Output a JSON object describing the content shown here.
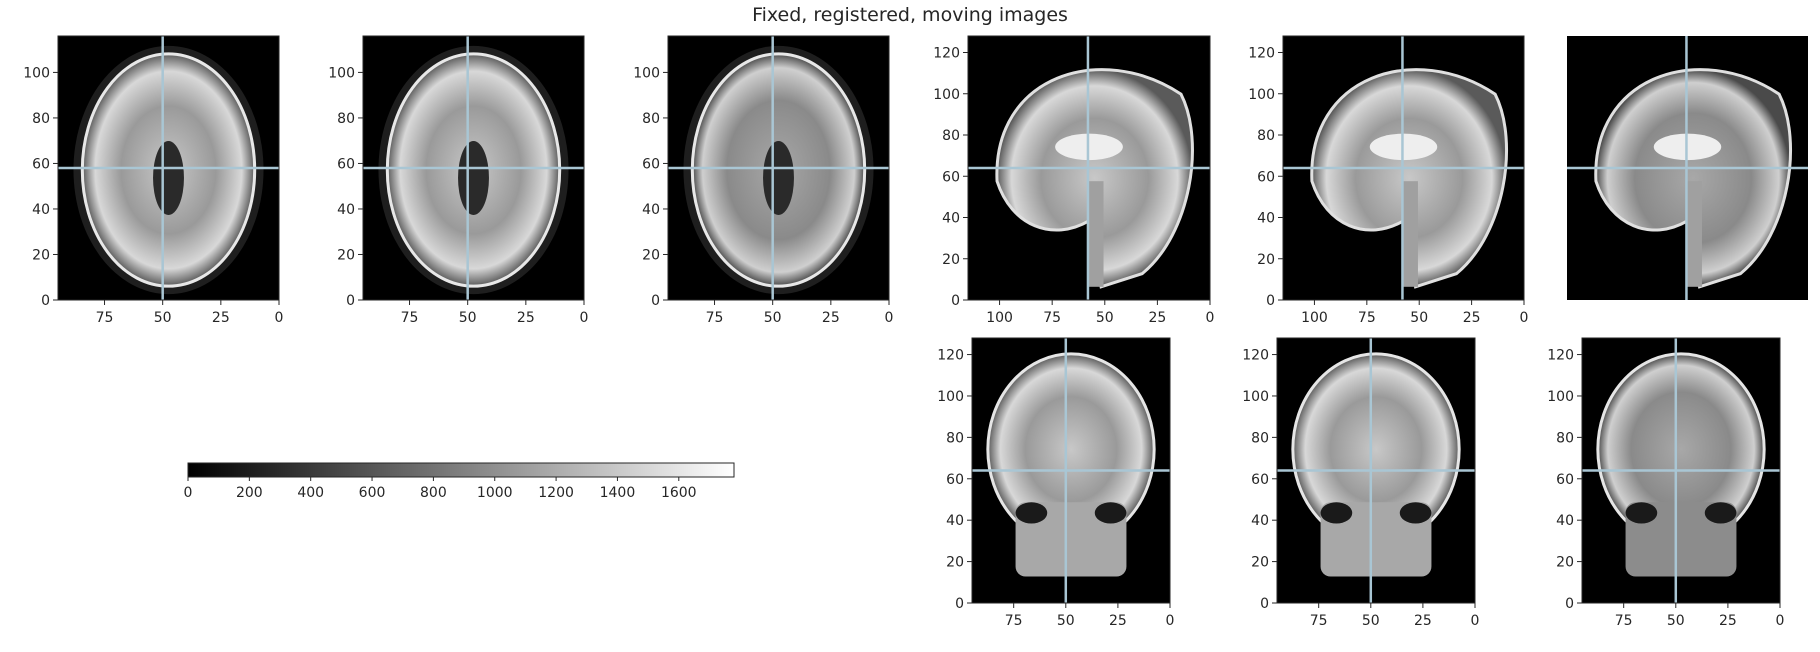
{
  "title": "Fixed, registered, moving images",
  "colors": {
    "crosshair": "#a9c6d4",
    "axis": "#262626",
    "background": "#000000",
    "tissue_dark": "#3a3a3a",
    "tissue_light": "#d8d8d8"
  },
  "chart_data": [
    {
      "type": "heatmap",
      "name": "axial-fixed",
      "view": "axial",
      "xlim": [
        95,
        0
      ],
      "ylim": [
        0,
        116
      ],
      "xticks": [
        75,
        50,
        25,
        0
      ],
      "yticks": [
        0,
        20,
        40,
        60,
        80,
        100
      ],
      "crosshair": {
        "x": 50,
        "y": 58
      },
      "colormap": "gray"
    },
    {
      "type": "heatmap",
      "name": "axial-registered",
      "view": "axial",
      "xlim": [
        95,
        0
      ],
      "ylim": [
        0,
        116
      ],
      "xticks": [
        75,
        50,
        25,
        0
      ],
      "yticks": [
        0,
        20,
        40,
        60,
        80,
        100
      ],
      "crosshair": {
        "x": 50,
        "y": 58
      },
      "colormap": "gray"
    },
    {
      "type": "heatmap",
      "name": "axial-moving",
      "view": "axial",
      "xlim": [
        95,
        0
      ],
      "ylim": [
        0,
        116
      ],
      "xticks": [
        75,
        50,
        25,
        0
      ],
      "yticks": [
        0,
        20,
        40,
        60,
        80,
        100
      ],
      "crosshair": {
        "x": 50,
        "y": 58
      },
      "colormap": "gray"
    },
    {
      "type": "heatmap",
      "name": "sagittal-fixed",
      "view": "sagittal",
      "xlim": [
        115,
        0
      ],
      "ylim": [
        0,
        128
      ],
      "xticks": [
        100,
        75,
        50,
        25,
        0
      ],
      "yticks": [
        0,
        20,
        40,
        60,
        80,
        100,
        120
      ],
      "crosshair": {
        "x": 58,
        "y": 64
      },
      "colormap": "gray"
    },
    {
      "type": "heatmap",
      "name": "sagittal-registered",
      "view": "sagittal",
      "xlim": [
        115,
        0
      ],
      "ylim": [
        0,
        128
      ],
      "xticks": [
        100,
        75,
        50,
        25,
        0
      ],
      "yticks": [
        0,
        20,
        40,
        60,
        80,
        100,
        120
      ],
      "crosshair": {
        "x": 58,
        "y": 64
      },
      "colormap": "gray"
    },
    {
      "type": "heatmap",
      "name": "sagittal-moving",
      "view": "sagittal",
      "xlim": [
        115,
        0
      ],
      "ylim": [
        0,
        128
      ],
      "xticks": [],
      "yticks": [],
      "crosshair": {
        "x": 58,
        "y": 64
      },
      "colormap": "gray"
    },
    {
      "type": "heatmap",
      "name": "coronal-fixed",
      "view": "coronal",
      "xlim": [
        95,
        0
      ],
      "ylim": [
        0,
        128
      ],
      "xticks": [
        75,
        50,
        25,
        0
      ],
      "yticks": [
        0,
        20,
        40,
        60,
        80,
        100,
        120
      ],
      "crosshair": {
        "x": 50,
        "y": 64
      },
      "colormap": "gray"
    },
    {
      "type": "heatmap",
      "name": "coronal-registered",
      "view": "coronal",
      "xlim": [
        95,
        0
      ],
      "ylim": [
        0,
        128
      ],
      "xticks": [
        75,
        50,
        25,
        0
      ],
      "yticks": [
        0,
        20,
        40,
        60,
        80,
        100,
        120
      ],
      "crosshair": {
        "x": 50,
        "y": 64
      },
      "colormap": "gray"
    },
    {
      "type": "heatmap",
      "name": "coronal-moving",
      "view": "coronal",
      "xlim": [
        95,
        0
      ],
      "ylim": [
        0,
        128
      ],
      "xticks": [
        75,
        50,
        25,
        0
      ],
      "yticks": [
        0,
        20,
        40,
        60,
        80,
        100,
        120
      ],
      "crosshair": {
        "x": 50,
        "y": 64
      },
      "colormap": "gray"
    },
    {
      "type": "colorbar",
      "name": "intensity-colorbar",
      "colormap": "gray",
      "range": [
        0,
        1780
      ],
      "ticks": [
        0,
        200,
        400,
        600,
        800,
        1000,
        1200,
        1400,
        1600
      ]
    }
  ]
}
